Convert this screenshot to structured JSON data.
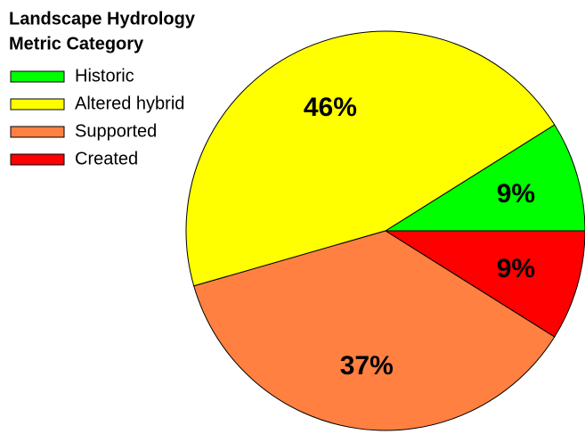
{
  "chart_data": {
    "type": "pie",
    "legend_title": [
      "Landscape Hydrology",
      "Metric Category"
    ],
    "categories": [
      "Historic",
      "Altered hybrid",
      "Supported",
      "Created"
    ],
    "values": [
      9,
      46,
      37,
      9
    ],
    "value_labels": [
      "9%",
      "46%",
      "37%",
      "9%"
    ],
    "colors": [
      "#00ff00",
      "#ffff00",
      "#ff8040",
      "#ff0000"
    ],
    "start_angle": 0,
    "direction": "counterclockwise",
    "legend": "top-left"
  }
}
